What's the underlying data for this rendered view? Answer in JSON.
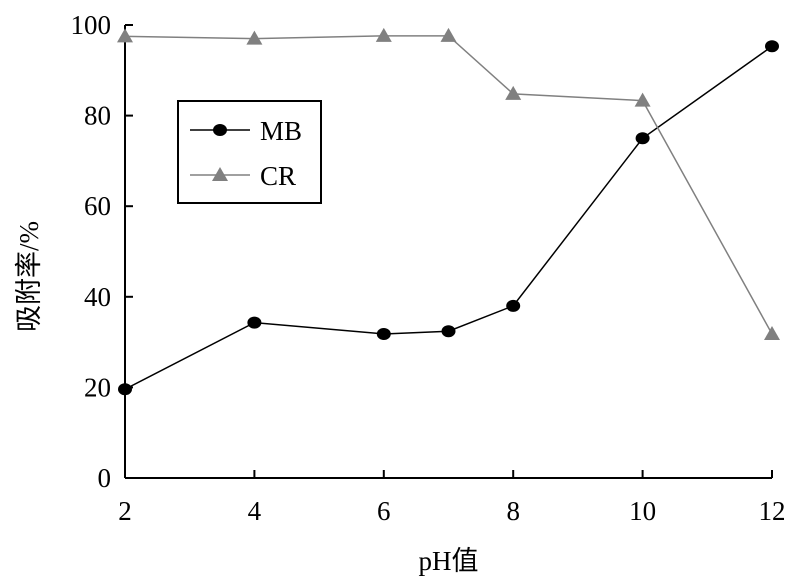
{
  "chart_data": {
    "type": "line",
    "xlabel": "pH值",
    "ylabel": "吸附率/%",
    "ylim": [
      0,
      100
    ],
    "x_ticks": [
      2,
      4,
      6,
      8,
      10,
      12
    ],
    "y_ticks": [
      0,
      20,
      40,
      60,
      80,
      100
    ],
    "grid": false,
    "legend_position": "left-upper",
    "series": [
      {
        "name": "MB",
        "marker": "circle",
        "color": "#000000",
        "points": [
          {
            "x": 2,
            "y": 19.6
          },
          {
            "x": 4,
            "y": 34.3
          },
          {
            "x": 6,
            "y": 31.8
          },
          {
            "x": 7,
            "y": 32.4
          },
          {
            "x": 8,
            "y": 38.0
          },
          {
            "x": 10,
            "y": 75.0
          },
          {
            "x": 12,
            "y": 95.3
          }
        ]
      },
      {
        "name": "CR",
        "marker": "triangle",
        "color": "#808080",
        "points": [
          {
            "x": 2,
            "y": 97.5
          },
          {
            "x": 4,
            "y": 97.0
          },
          {
            "x": 6,
            "y": 97.6
          },
          {
            "x": 7,
            "y": 97.6
          },
          {
            "x": 8,
            "y": 84.8
          },
          {
            "x": 10,
            "y": 83.3
          },
          {
            "x": 12,
            "y": 31.8
          }
        ]
      }
    ]
  }
}
